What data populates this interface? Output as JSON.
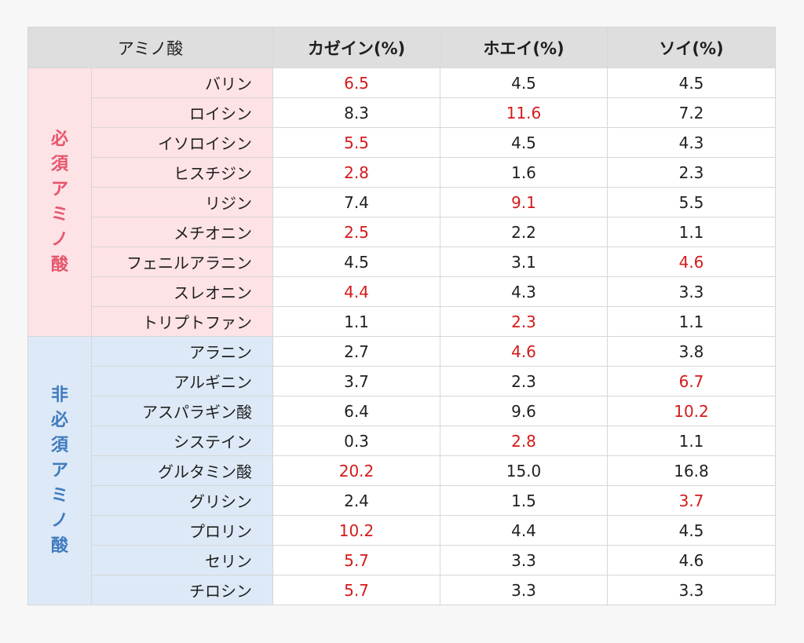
{
  "table": {
    "headers": {
      "amino_acid": "アミノ酸",
      "casein": "カゼイン(%)",
      "whey": "ホエイ(%)",
      "soy": "ソイ(%)"
    },
    "highlight_color": "#d41a1a",
    "groups": [
      {
        "label": "必須アミノ酸",
        "color": "#e5566b",
        "background": "#fde2e6",
        "rows": [
          {
            "name": "バリン",
            "casein": "6.5",
            "whey": "4.5",
            "soy": "4.5",
            "highlight": "casein"
          },
          {
            "name": "ロイシン",
            "casein": "8.3",
            "whey": "11.6",
            "soy": "7.2",
            "highlight": "whey"
          },
          {
            "name": "イソロイシン",
            "casein": "5.5",
            "whey": "4.5",
            "soy": "4.3",
            "highlight": "casein"
          },
          {
            "name": "ヒスチジン",
            "casein": "2.8",
            "whey": "1.6",
            "soy": "2.3",
            "highlight": "casein"
          },
          {
            "name": "リジン",
            "casein": "7.4",
            "whey": "9.1",
            "soy": "5.5",
            "highlight": "whey"
          },
          {
            "name": "メチオニン",
            "casein": "2.5",
            "whey": "2.2",
            "soy": "1.1",
            "highlight": "casein"
          },
          {
            "name": "フェニルアラニン",
            "casein": "4.5",
            "whey": "3.1",
            "soy": "4.6",
            "highlight": "soy"
          },
          {
            "name": "スレオニン",
            "casein": "4.4",
            "whey": "4.3",
            "soy": "3.3",
            "highlight": "casein"
          },
          {
            "name": "トリプトファン",
            "casein": "1.1",
            "whey": "2.3",
            "soy": "1.1",
            "highlight": "whey"
          }
        ]
      },
      {
        "label": "非必須アミノ酸",
        "color": "#3f7bc0",
        "background": "#dde9f6",
        "rows": [
          {
            "name": "アラニン",
            "casein": "2.7",
            "whey": "4.6",
            "soy": "3.8",
            "highlight": "whey"
          },
          {
            "name": "アルギニン",
            "casein": "3.7",
            "whey": "2.3",
            "soy": "6.7",
            "highlight": "soy"
          },
          {
            "name": "アスパラギン酸",
            "casein": "6.4",
            "whey": "9.6",
            "soy": "10.2",
            "highlight": "soy"
          },
          {
            "name": "システイン",
            "casein": "0.3",
            "whey": "2.8",
            "soy": "1.1",
            "highlight": "whey"
          },
          {
            "name": "グルタミン酸",
            "casein": "20.2",
            "whey": "15.0",
            "soy": "16.8",
            "highlight": "casein"
          },
          {
            "name": "グリシン",
            "casein": "2.4",
            "whey": "1.5",
            "soy": "3.7",
            "highlight": "soy"
          },
          {
            "name": "プロリン",
            "casein": "10.2",
            "whey": "4.4",
            "soy": "4.5",
            "highlight": "casein"
          },
          {
            "name": "セリン",
            "casein": "5.7",
            "whey": "3.3",
            "soy": "4.6",
            "highlight": "casein"
          },
          {
            "name": "チロシン",
            "casein": "5.7",
            "whey": "3.3",
            "soy": "3.3",
            "highlight": "casein"
          }
        ]
      }
    ]
  }
}
